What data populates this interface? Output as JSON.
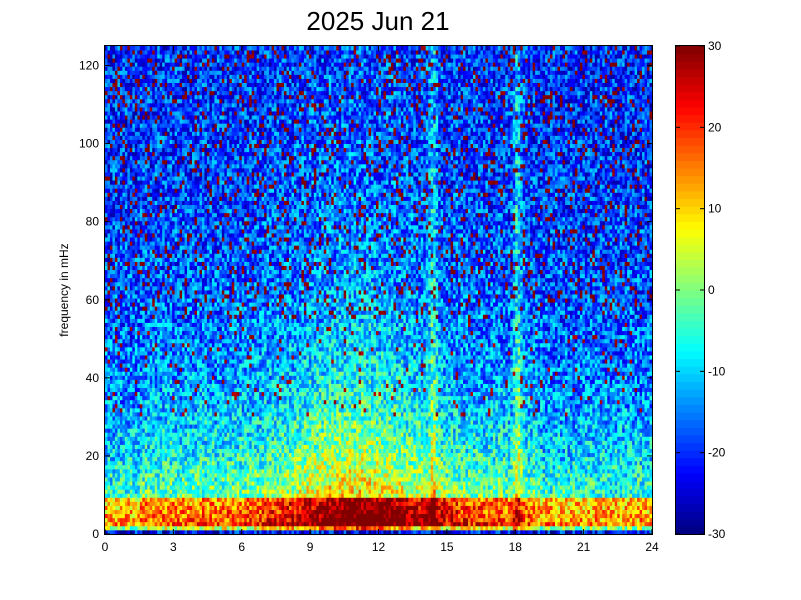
{
  "chart_data": {
    "type": "heatmap",
    "title": "2025 Jun 21",
    "xlabel": "",
    "ylabel": "frequency in mHz",
    "xlim": [
      0,
      24
    ],
    "ylim": [
      0,
      125
    ],
    "xticks": [
      "0",
      "3",
      "6",
      "9",
      "12",
      "15",
      "18",
      "21",
      "24"
    ],
    "xtick_values": [
      0,
      3,
      6,
      9,
      12,
      15,
      18,
      21,
      24
    ],
    "yticks": [
      "0",
      "20",
      "40",
      "60",
      "80",
      "100",
      "120"
    ],
    "ytick_values": [
      0,
      20,
      40,
      60,
      80,
      100,
      120
    ],
    "colorbar": {
      "range": [
        -30,
        30
      ],
      "ticks": [
        "30",
        "20",
        "10",
        "0",
        "-10",
        "-20",
        "-30"
      ],
      "tick_values": [
        30,
        20,
        10,
        0,
        -10,
        -20,
        -30
      ],
      "colormap": "jet"
    },
    "grid": false
  }
}
